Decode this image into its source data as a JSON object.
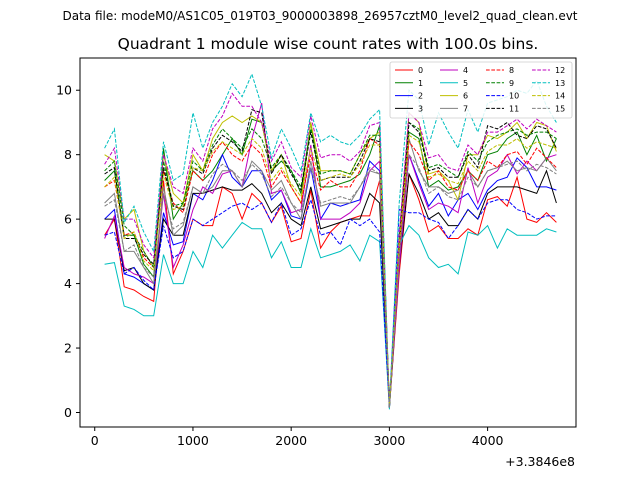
{
  "figure": {
    "suptitle": "Data file: modeM0/AS1C05_019T03_9000003898_26957cztM0_level2_quad_clean.evt",
    "background": "#ffffff"
  },
  "chart_data": {
    "type": "line",
    "title": "Quadrant 1 module wise count rates with 100.0s bins.",
    "xlabel": "",
    "ylabel": "",
    "x_offset_label": "+3.3846e8",
    "xlim": [
      -150,
      4900
    ],
    "ylim": [
      -0.45,
      11.0
    ],
    "xticks": [
      0,
      1000,
      2000,
      3000,
      4000
    ],
    "xtick_labels": [
      "0",
      "1000",
      "2000",
      "3000",
      "4000"
    ],
    "yticks": [
      0,
      2,
      4,
      6,
      8,
      10
    ],
    "ytick_labels": [
      "0",
      "2",
      "4",
      "6",
      "8",
      "10"
    ],
    "grid": false,
    "legend_position": "top-right",
    "x": [
      100,
      200,
      300,
      400,
      500,
      600,
      700,
      800,
      900,
      1000,
      1100,
      1200,
      1300,
      1400,
      1500,
      1600,
      1700,
      1800,
      1900,
      2000,
      2100,
      2200,
      2300,
      2400,
      2500,
      2600,
      2700,
      2800,
      2900,
      3000,
      3100,
      3200,
      3300,
      3400,
      3500,
      3600,
      3700,
      3800,
      3900,
      4000,
      4100,
      4200,
      4300,
      4400,
      4500,
      4600,
      4700
    ],
    "series": [
      {
        "name": "0",
        "color": "#ff0000",
        "dash": "solid",
        "values": [
          5.5,
          6.0,
          3.9,
          3.8,
          3.6,
          3.45,
          7.2,
          4.3,
          5.0,
          6.0,
          5.8,
          5.8,
          7.0,
          6.8,
          6.0,
          6.8,
          6.5,
          5.9,
          6.4,
          5.3,
          5.4,
          6.9,
          5.1,
          5.6,
          5.9,
          6.0,
          6.1,
          6.1,
          7.2,
          0.15,
          4.3,
          7.4,
          6.6,
          5.6,
          5.8,
          5.4,
          5.4,
          5.7,
          5.5,
          6.6,
          6.7,
          6.4,
          7.3,
          6.0,
          5.9,
          6.2,
          5.9
        ]
      },
      {
        "name": "1",
        "color": "#008000",
        "dash": "solid",
        "values": [
          7.2,
          7.5,
          5.5,
          5.5,
          4.6,
          4.2,
          8.2,
          6.0,
          6.5,
          7.5,
          7.2,
          7.5,
          8.0,
          8.5,
          8.0,
          9.1,
          9.0,
          7.5,
          7.8,
          7.5,
          6.8,
          9.0,
          7.0,
          7.0,
          7.1,
          7.2,
          7.4,
          8.0,
          8.9,
          0.2,
          5.2,
          8.7,
          8.5,
          7.0,
          7.2,
          6.9,
          7.0,
          7.5,
          7.2,
          8.0,
          8.1,
          8.5,
          8.7,
          8.0,
          8.6,
          7.8,
          8.5
        ]
      },
      {
        "name": "2",
        "color": "#0000ff",
        "dash": "solid",
        "values": [
          6.0,
          6.3,
          4.3,
          4.2,
          4.0,
          3.8,
          6.2,
          5.2,
          5.3,
          6.8,
          6.6,
          7.2,
          8.0,
          7.3,
          7.0,
          7.5,
          7.5,
          6.6,
          6.9,
          6.1,
          6.0,
          7.6,
          6.0,
          6.5,
          6.4,
          6.5,
          6.6,
          7.8,
          7.5,
          0.15,
          4.8,
          8.0,
          7.2,
          6.4,
          6.8,
          6.1,
          6.6,
          6.8,
          6.3,
          6.9,
          7.2,
          7.3,
          7.9,
          7.6,
          7.0,
          7.0,
          6.9
        ]
      },
      {
        "name": "3",
        "color": "#000000",
        "dash": "solid",
        "values": [
          6.0,
          6.0,
          4.4,
          4.5,
          4.0,
          3.8,
          6.0,
          5.5,
          5.5,
          6.8,
          6.8,
          6.9,
          7.0,
          6.9,
          6.9,
          7.1,
          6.8,
          6.2,
          6.5,
          6.0,
          5.8,
          7.0,
          5.7,
          5.8,
          5.9,
          6.0,
          6.0,
          6.8,
          6.5,
          0.15,
          4.5,
          7.4,
          6.8,
          6.0,
          6.2,
          5.8,
          5.8,
          6.3,
          6.0,
          6.8,
          7.0,
          7.0,
          7.0,
          6.9,
          6.8,
          7.5,
          6.5
        ]
      },
      {
        "name": "4",
        "color": "#bf00bf",
        "dash": "solid",
        "values": [
          5.4,
          6.1,
          4.5,
          4.3,
          4.2,
          4.0,
          6.8,
          4.5,
          5.2,
          6.3,
          7.0,
          6.8,
          7.4,
          7.5,
          7.0,
          8.5,
          9.6,
          6.8,
          6.9,
          6.2,
          6.3,
          8.3,
          6.0,
          6.0,
          6.0,
          6.2,
          6.5,
          7.5,
          7.8,
          0.2,
          4.5,
          8.0,
          7.1,
          6.3,
          6.5,
          6.4,
          6.2,
          7.6,
          6.5,
          7.3,
          7.5,
          8.0,
          7.4,
          7.8,
          7.5,
          7.9,
          8.0
        ]
      },
      {
        "name": "5",
        "color": "#00bfbf",
        "dash": "solid",
        "values": [
          4.6,
          4.65,
          3.3,
          3.2,
          3.0,
          3.0,
          4.9,
          4.0,
          4.0,
          5.0,
          4.5,
          5.5,
          5.1,
          5.5,
          5.9,
          5.7,
          5.7,
          4.8,
          5.3,
          4.5,
          4.5,
          5.7,
          4.8,
          4.9,
          5.0,
          5.2,
          4.7,
          5.5,
          5.3,
          0.1,
          5.2,
          5.8,
          5.5,
          4.8,
          4.5,
          4.6,
          4.3,
          5.6,
          5.5,
          5.8,
          5.1,
          5.7,
          5.5,
          5.5,
          5.5,
          5.7,
          5.6
        ]
      },
      {
        "name": "6",
        "color": "#bfbf00",
        "dash": "solid",
        "values": [
          8.0,
          7.8,
          6.0,
          6.3,
          5.0,
          4.5,
          8.0,
          6.8,
          6.5,
          8.0,
          7.5,
          8.5,
          9.0,
          9.2,
          9.0,
          9.2,
          9.0,
          7.5,
          8.0,
          7.0,
          6.5,
          9.0,
          7.5,
          7.5,
          7.5,
          7.4,
          8.0,
          8.5,
          8.7,
          0.2,
          5.0,
          9.3,
          9.0,
          7.4,
          7.5,
          7.2,
          6.6,
          8.0,
          8.0,
          8.6,
          8.5,
          8.7,
          9.0,
          8.5,
          9.0,
          8.9,
          8.1
        ]
      },
      {
        "name": "7",
        "color": "#808080",
        "dash": "solid",
        "values": [
          6.5,
          6.8,
          5.0,
          5.0,
          4.5,
          4.0,
          7.0,
          5.5,
          5.8,
          7.0,
          6.8,
          7.0,
          7.5,
          7.5,
          7.0,
          7.8,
          7.5,
          6.9,
          7.2,
          6.5,
          6.0,
          7.8,
          6.4,
          6.5,
          6.5,
          6.5,
          7.0,
          7.5,
          7.4,
          0.15,
          4.8,
          8.5,
          7.5,
          7.0,
          7.0,
          6.8,
          6.9,
          7.5,
          7.0,
          7.5,
          7.6,
          7.8,
          7.5,
          7.6,
          7.5,
          7.9,
          7.5
        ]
      },
      {
        "name": "8",
        "color": "#ff0000",
        "dash": "dashed",
        "values": [
          7.0,
          7.2,
          5.5,
          5.6,
          4.8,
          4.5,
          7.5,
          6.5,
          6.2,
          7.5,
          7.2,
          8.0,
          8.4,
          8.0,
          7.8,
          8.3,
          8.0,
          7.0,
          7.5,
          7.0,
          6.5,
          8.0,
          6.9,
          7.2,
          7.0,
          7.0,
          7.5,
          8.5,
          8.3,
          0.2,
          5.0,
          8.4,
          8.0,
          7.2,
          7.5,
          7.0,
          6.9,
          7.5,
          7.2,
          7.8,
          7.6,
          8.0,
          8.1,
          7.7,
          8.2,
          7.9,
          7.6
        ]
      },
      {
        "name": "9",
        "color": "#008000",
        "dash": "dashed",
        "values": [
          7.5,
          7.8,
          5.8,
          5.5,
          5.0,
          4.5,
          7.8,
          6.4,
          6.5,
          7.8,
          7.5,
          8.3,
          8.8,
          8.5,
          8.2,
          8.8,
          8.5,
          7.6,
          8.0,
          7.5,
          7.0,
          8.8,
          7.4,
          7.5,
          7.5,
          7.4,
          8.0,
          8.6,
          8.6,
          0.2,
          5.5,
          9.0,
          8.8,
          7.6,
          7.7,
          7.5,
          7.3,
          8.1,
          7.8,
          8.4,
          8.6,
          8.7,
          8.8,
          8.6,
          8.7,
          8.7,
          8.5
        ]
      },
      {
        "name": "10",
        "color": "#0000ff",
        "dash": "dashed",
        "values": [
          5.5,
          5.6,
          4.3,
          4.5,
          4.1,
          3.8,
          5.8,
          4.8,
          5.0,
          6.0,
          5.8,
          6.0,
          6.2,
          6.4,
          6.5,
          6.3,
          6.5,
          5.9,
          6.5,
          5.5,
          5.7,
          6.6,
          5.5,
          5.6,
          5.2,
          6.0,
          5.8,
          6.0,
          5.6,
          0.15,
          6.3,
          6.2,
          6.2,
          6.0,
          5.9,
          5.4,
          5.8,
          6.3,
          6.0,
          6.5,
          6.6,
          6.6,
          6.3,
          6.2,
          6.0,
          6.1,
          6.1
        ]
      },
      {
        "name": "11",
        "color": "#000000",
        "dash": "dashed",
        "values": [
          7.4,
          7.6,
          5.4,
          5.4,
          4.9,
          4.6,
          7.6,
          6.4,
          6.3,
          7.6,
          7.4,
          8.2,
          8.6,
          8.4,
          8.1,
          9.4,
          9.3,
          7.4,
          8.0,
          7.4,
          6.9,
          8.7,
          7.2,
          7.3,
          7.3,
          7.3,
          7.8,
          8.5,
          8.4,
          0.2,
          5.3,
          9.0,
          8.7,
          7.5,
          7.6,
          7.3,
          7.3,
          8.0,
          7.6,
          8.9,
          8.8,
          9.0,
          8.6,
          8.5,
          8.9,
          8.8,
          8.2
        ]
      },
      {
        "name": "12",
        "color": "#bf00bf",
        "dash": "dashed",
        "values": [
          7.7,
          8.2,
          6.0,
          6.0,
          5.2,
          4.8,
          8.0,
          7.0,
          6.8,
          8.2,
          7.8,
          8.8,
          9.2,
          9.9,
          9.5,
          9.5,
          9.0,
          7.8,
          8.4,
          7.6,
          7.3,
          9.2,
          7.9,
          8.0,
          8.0,
          7.8,
          8.1,
          8.9,
          9.0,
          0.2,
          5.5,
          9.3,
          9.0,
          7.9,
          8.0,
          7.6,
          7.5,
          8.3,
          8.0,
          8.7,
          8.7,
          8.9,
          9.1,
          8.8,
          9.1,
          8.9,
          8.7
        ]
      },
      {
        "name": "13",
        "color": "#00bfbf",
        "dash": "dashed",
        "values": [
          8.2,
          8.8,
          5.9,
          6.4,
          5.6,
          5.0,
          8.4,
          7.2,
          7.4,
          9.3,
          8.2,
          9.0,
          9.5,
          10.2,
          9.8,
          10.5,
          9.5,
          7.9,
          8.8,
          8.2,
          7.5,
          9.3,
          8.4,
          8.6,
          8.4,
          8.3,
          8.6,
          9.1,
          9.4,
          0.2,
          6.5,
          10.0,
          9.7,
          8.3,
          9.3,
          8.7,
          8.2,
          9.4,
          8.7,
          9.6,
          9.7,
          9.8,
          10.0,
          9.9,
          10.3,
          9.5,
          9.0
        ]
      },
      {
        "name": "14",
        "color": "#bfbf00",
        "dash": "dashed",
        "values": [
          7.0,
          7.3,
          5.4,
          5.6,
          4.7,
          4.4,
          7.4,
          6.3,
          6.4,
          7.6,
          7.5,
          8.1,
          8.4,
          8.2,
          8.0,
          8.5,
          8.2,
          7.2,
          7.6,
          7.1,
          6.7,
          8.2,
          7.2,
          7.3,
          7.4,
          7.3,
          7.7,
          8.3,
          8.3,
          0.2,
          5.2,
          8.6,
          8.4,
          7.3,
          7.4,
          7.2,
          7.1,
          7.8,
          7.5,
          8.1,
          8.3,
          8.3,
          8.5,
          8.2,
          8.4,
          8.3,
          8.2
        ]
      },
      {
        "name": "15",
        "color": "#808080",
        "dash": "dashed",
        "values": [
          6.4,
          6.6,
          5.0,
          5.2,
          4.5,
          4.2,
          6.8,
          5.7,
          5.9,
          7.0,
          6.8,
          7.4,
          7.7,
          7.5,
          7.2,
          7.7,
          7.4,
          6.7,
          7.0,
          6.5,
          6.2,
          7.6,
          6.5,
          6.6,
          6.7,
          6.6,
          7.0,
          7.6,
          7.4,
          0.15,
          4.9,
          8.0,
          7.6,
          6.8,
          7.0,
          6.7,
          6.6,
          7.3,
          7.0,
          7.5,
          7.6,
          7.7,
          7.8,
          7.5,
          7.7,
          7.6,
          7.4
        ]
      }
    ]
  }
}
